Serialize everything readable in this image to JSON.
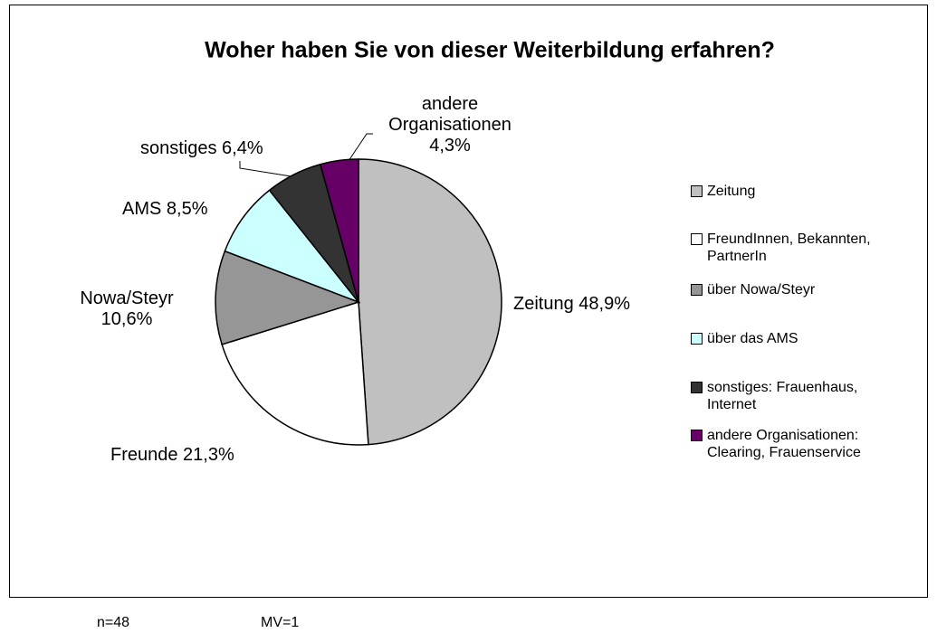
{
  "chart_data": {
    "type": "pie",
    "title": "Woher haben Sie von dieser Weiterbildung erfahren?",
    "categories": [
      "Zeitung",
      "FreundInnen, Bekannten,\nPartnerIn",
      "über Nowa/Steyr",
      "über das AMS",
      "sonstiges: Frauenhaus,\nInternet",
      "andere Organisationen:\nClearing, Frauenservice"
    ],
    "values": [
      48.9,
      21.3,
      10.6,
      8.5,
      6.4,
      4.3
    ],
    "value_labels": [
      "Zeitung 48,9%",
      "Freunde 21,3%",
      "Nowa/Steyr\n10,6%",
      "AMS 8,5%",
      "sonstiges 6,4%",
      "andere\nOrganisationen\n4,3%"
    ],
    "colors": [
      "#c0c0c0",
      "#ffffff",
      "#969696",
      "#ccffff",
      "#333333",
      "#660066"
    ],
    "legend": "right"
  },
  "footnotes": [
    "n=48",
    "MV=1"
  ]
}
